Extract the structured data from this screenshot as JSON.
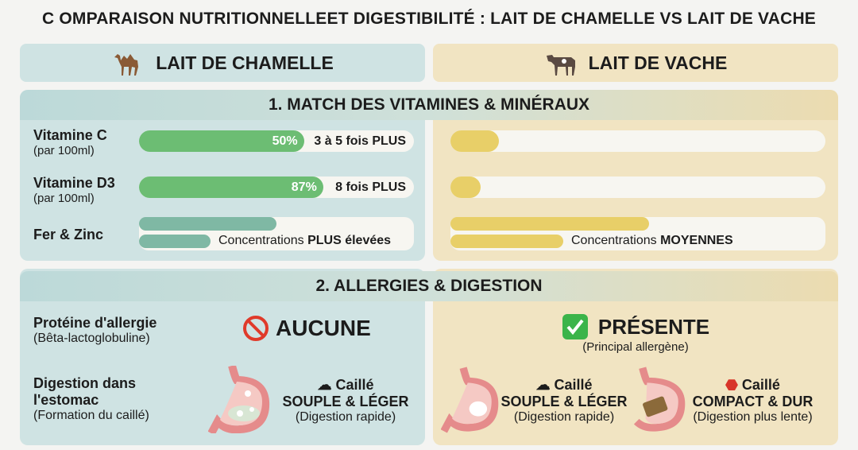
{
  "title": "C OMPARAISON NUTRITIONNELLEET DIGESTIBILITÉ : LAIT DE CHAMELLE VS LAIT DE VACHE",
  "columns": {
    "camel": "LAIT DE CHAMELLE",
    "cow": "LAIT DE VACHE"
  },
  "section1": {
    "title": "1. MATCH DES VITAMINES & MINÉRAUX",
    "rows": [
      {
        "label": "Vitamine C",
        "sub": "(par 100ml)",
        "camel_pct": "50%",
        "camel_text": "3 à 5 fois PLUS",
        "camel_fill": 0.6,
        "cow_fill": 0.13
      },
      {
        "label": "Vitamine D3",
        "sub": "(par 100ml)",
        "camel_pct": "87%",
        "camel_text": "8 fois PLUS",
        "camel_fill": 0.67,
        "cow_fill": 0.08
      },
      {
        "label": "Fer & Zinc",
        "camel_text_pre": "Concentrations",
        "camel_text_bold": "PLUS élevées",
        "cow_text_pre": "Concentrations",
        "cow_text_bold": "MOYENNES",
        "camel_fill_top": 0.5,
        "camel_fill_bottom": 0.26,
        "cow_fill_top": 0.53,
        "cow_fill_bottom": 0.3
      }
    ]
  },
  "section2": {
    "title": "2. ALLERGIES & DIGESTION",
    "allergy": {
      "label": "Protéine d'allergie",
      "sub": "(Bêta-lactoglobuline)",
      "camel": "AUCUNE",
      "cow": "PRÉSENTE",
      "cow_sub": "(Principal allergène)"
    },
    "digestion": {
      "label1": "Digestion dans",
      "label2": "l'estomac",
      "sub": "(Formation du caillé)",
      "soft": {
        "line1": "Caillé",
        "line2": "SOUPLE & LÉGER",
        "line3": "(Digestion rapide)"
      },
      "hard": {
        "line1": "Caillé",
        "line2": "COMPACT & DUR",
        "line3": "(Digestion plus lente)"
      }
    }
  }
}
